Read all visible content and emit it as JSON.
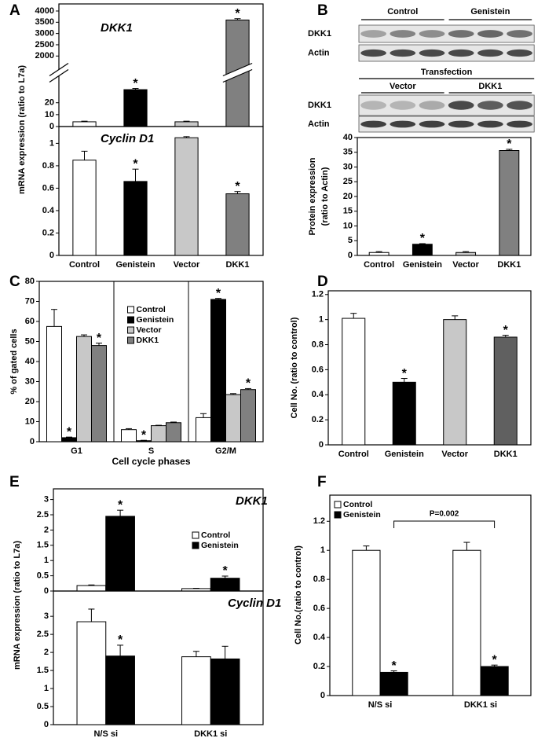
{
  "blots": {
    "groups_top": [
      "Control",
      "Genistein"
    ],
    "rows_top": [
      "DKK1",
      "Actin"
    ],
    "header": "Transfection",
    "groups_bottom": [
      "Vector",
      "DKK1"
    ],
    "rows_bottom": [
      "DKK1",
      "Actin"
    ]
  },
  "chart_data": [
    {
      "type": "bar",
      "panel": "A",
      "title": "DKK1",
      "ylim": [
        0,
        4000
      ],
      "y_break": [
        35,
        1800
      ],
      "yticks": [
        0,
        10,
        20,
        2000,
        2500,
        3000,
        3500,
        4000
      ],
      "series": [
        {
          "color": [
            "#ffffff",
            "#000000",
            "#c8c8c8",
            "#808080"
          ],
          "values": [
            4,
            31,
            4,
            3600
          ],
          "errors": [
            0.5,
            1,
            0.5,
            60
          ],
          "significance": [
            null,
            "*",
            null,
            "*"
          ]
        }
      ]
    },
    {
      "type": "bar",
      "title": "Cyclin D1",
      "y_label": [
        "mRNA expression (ratio to L7a)"
      ],
      "categories": [
        "Control",
        "Genistein",
        "Vector",
        "DKK1"
      ],
      "ylim": [
        0,
        1.15
      ],
      "yticks": [
        0,
        0.2,
        0.4,
        0.6,
        0.8,
        1
      ],
      "series": [
        {
          "color": [
            "#ffffff",
            "#000000",
            "#c8c8c8",
            "#808080"
          ],
          "values": [
            0.85,
            0.66,
            1.05,
            0.55
          ],
          "errors": [
            0.08,
            0.11,
            0.01,
            0.02
          ],
          "significance": [
            null,
            "*",
            null,
            "*"
          ]
        }
      ]
    },
    {
      "type": "bar",
      "panel": "B",
      "y_label": [
        "Protein expression",
        "(ratio to Actin)"
      ],
      "categories": [
        "Control",
        "Genistein",
        "Vector",
        "DKK1"
      ],
      "ylim": [
        0,
        40
      ],
      "yticks": [
        0,
        5,
        10,
        15,
        20,
        25,
        30,
        35,
        40
      ],
      "series": [
        {
          "color": [
            "#ffffff",
            "#000000",
            "#c8c8c8",
            "#808080"
          ],
          "values": [
            1,
            3.8,
            1,
            35.6
          ],
          "errors": [
            0.3,
            0.2,
            0.3,
            0.4
          ],
          "significance": [
            null,
            "*",
            null,
            "*"
          ]
        }
      ]
    },
    {
      "type": "bar",
      "panel": "C",
      "x_label": "Cell cycle phases",
      "y_label": [
        "% of gated cells"
      ],
      "categories": [
        "G1",
        "S",
        "G2/M"
      ],
      "ylim": [
        0,
        80
      ],
      "yticks": [
        0,
        10,
        20,
        30,
        40,
        50,
        60,
        70,
        80
      ],
      "group_dividers": true,
      "legend": "upper center",
      "series": [
        {
          "name": "Control",
          "color": "#ffffff",
          "values": [
            57.5,
            6,
            12
          ],
          "errors": [
            8.5,
            0.5,
            2
          ]
        },
        {
          "name": "Genistein",
          "color": "#000000",
          "values": [
            2,
            0.5,
            71
          ],
          "errors": [
            0.3,
            0.2,
            0.5
          ],
          "significance": [
            "*",
            "*",
            "*"
          ]
        },
        {
          "name": "Vector",
          "color": "#c8c8c8",
          "values": [
            52.5,
            8,
            23.5
          ],
          "errors": [
            0.8,
            0.2,
            0.5
          ]
        },
        {
          "name": "DKK1",
          "color": "#808080",
          "values": [
            48,
            9.5,
            26
          ],
          "errors": [
            1.2,
            0.3,
            0.5
          ],
          "significance": [
            "*",
            null,
            "*"
          ]
        }
      ]
    },
    {
      "type": "bar",
      "panel": "D",
      "y_label": [
        "Cell No. (ratio to control)"
      ],
      "categories": [
        "Control",
        "Genistein",
        "Vector",
        "DKK1"
      ],
      "ylim": [
        0,
        1.23
      ],
      "yticks": [
        0,
        0.2,
        0.4,
        0.6,
        0.8,
        1,
        1.2
      ],
      "series": [
        {
          "color": [
            "#ffffff",
            "#000000",
            "#c8c8c8",
            "#606060"
          ],
          "values": [
            1.01,
            0.5,
            1.0,
            0.86
          ],
          "errors": [
            0.04,
            0.03,
            0.03,
            0.015
          ],
          "significance": [
            null,
            "*",
            null,
            "*"
          ]
        }
      ]
    },
    {
      "type": "bar",
      "panel": "E",
      "title": "DKK1",
      "ylim": [
        0,
        3.35
      ],
      "yticks": [
        0,
        0.5,
        1,
        1.5,
        2,
        2.5,
        3
      ],
      "legend": "center right",
      "series": [
        {
          "name": "Control",
          "color": "#ffffff",
          "values": [
            0.18,
            0.08
          ],
          "errors": [
            0.02,
            0.01
          ]
        },
        {
          "name": "Genistein",
          "color": "#000000",
          "values": [
            2.45,
            0.42
          ],
          "errors": [
            0.2,
            0.07
          ],
          "significance": [
            "*",
            "*"
          ]
        }
      ]
    },
    {
      "type": "bar",
      "title": "Cyclin D1",
      "y_label": [
        "mRNA expression (ratio to L7a)"
      ],
      "categories": [
        "N/S si",
        "DKK1 si"
      ],
      "ylim": [
        0,
        3.7
      ],
      "yticks": [
        0,
        0.5,
        1,
        1.5,
        2,
        2.5,
        3
      ],
      "series": [
        {
          "color": "#ffffff",
          "values": [
            2.85,
            1.88
          ],
          "errors": [
            0.35,
            0.15
          ]
        },
        {
          "color": "#000000",
          "values": [
            1.9,
            1.82
          ],
          "errors": [
            0.3,
            0.35
          ],
          "significance": [
            "*",
            null
          ]
        }
      ]
    },
    {
      "type": "bar",
      "panel": "F",
      "y_label": [
        "Cell No.(ratio to control)"
      ],
      "categories": [
        "N/S si",
        "DKK1 si"
      ],
      "ylim": [
        0,
        1.38
      ],
      "yticks": [
        0,
        0.2,
        0.4,
        0.6,
        0.8,
        1,
        1.2
      ],
      "legend": "upper left",
      "bracket_label": "P=0.002",
      "series": [
        {
          "name": "Control",
          "color": "#ffffff",
          "values": [
            1.0,
            1.0
          ],
          "errors": [
            0.03,
            0.055
          ]
        },
        {
          "name": "Genistein",
          "color": "#000000",
          "values": [
            0.16,
            0.2
          ],
          "errors": [
            0.01,
            0.01
          ],
          "significance": [
            "*",
            "*"
          ]
        }
      ]
    }
  ]
}
